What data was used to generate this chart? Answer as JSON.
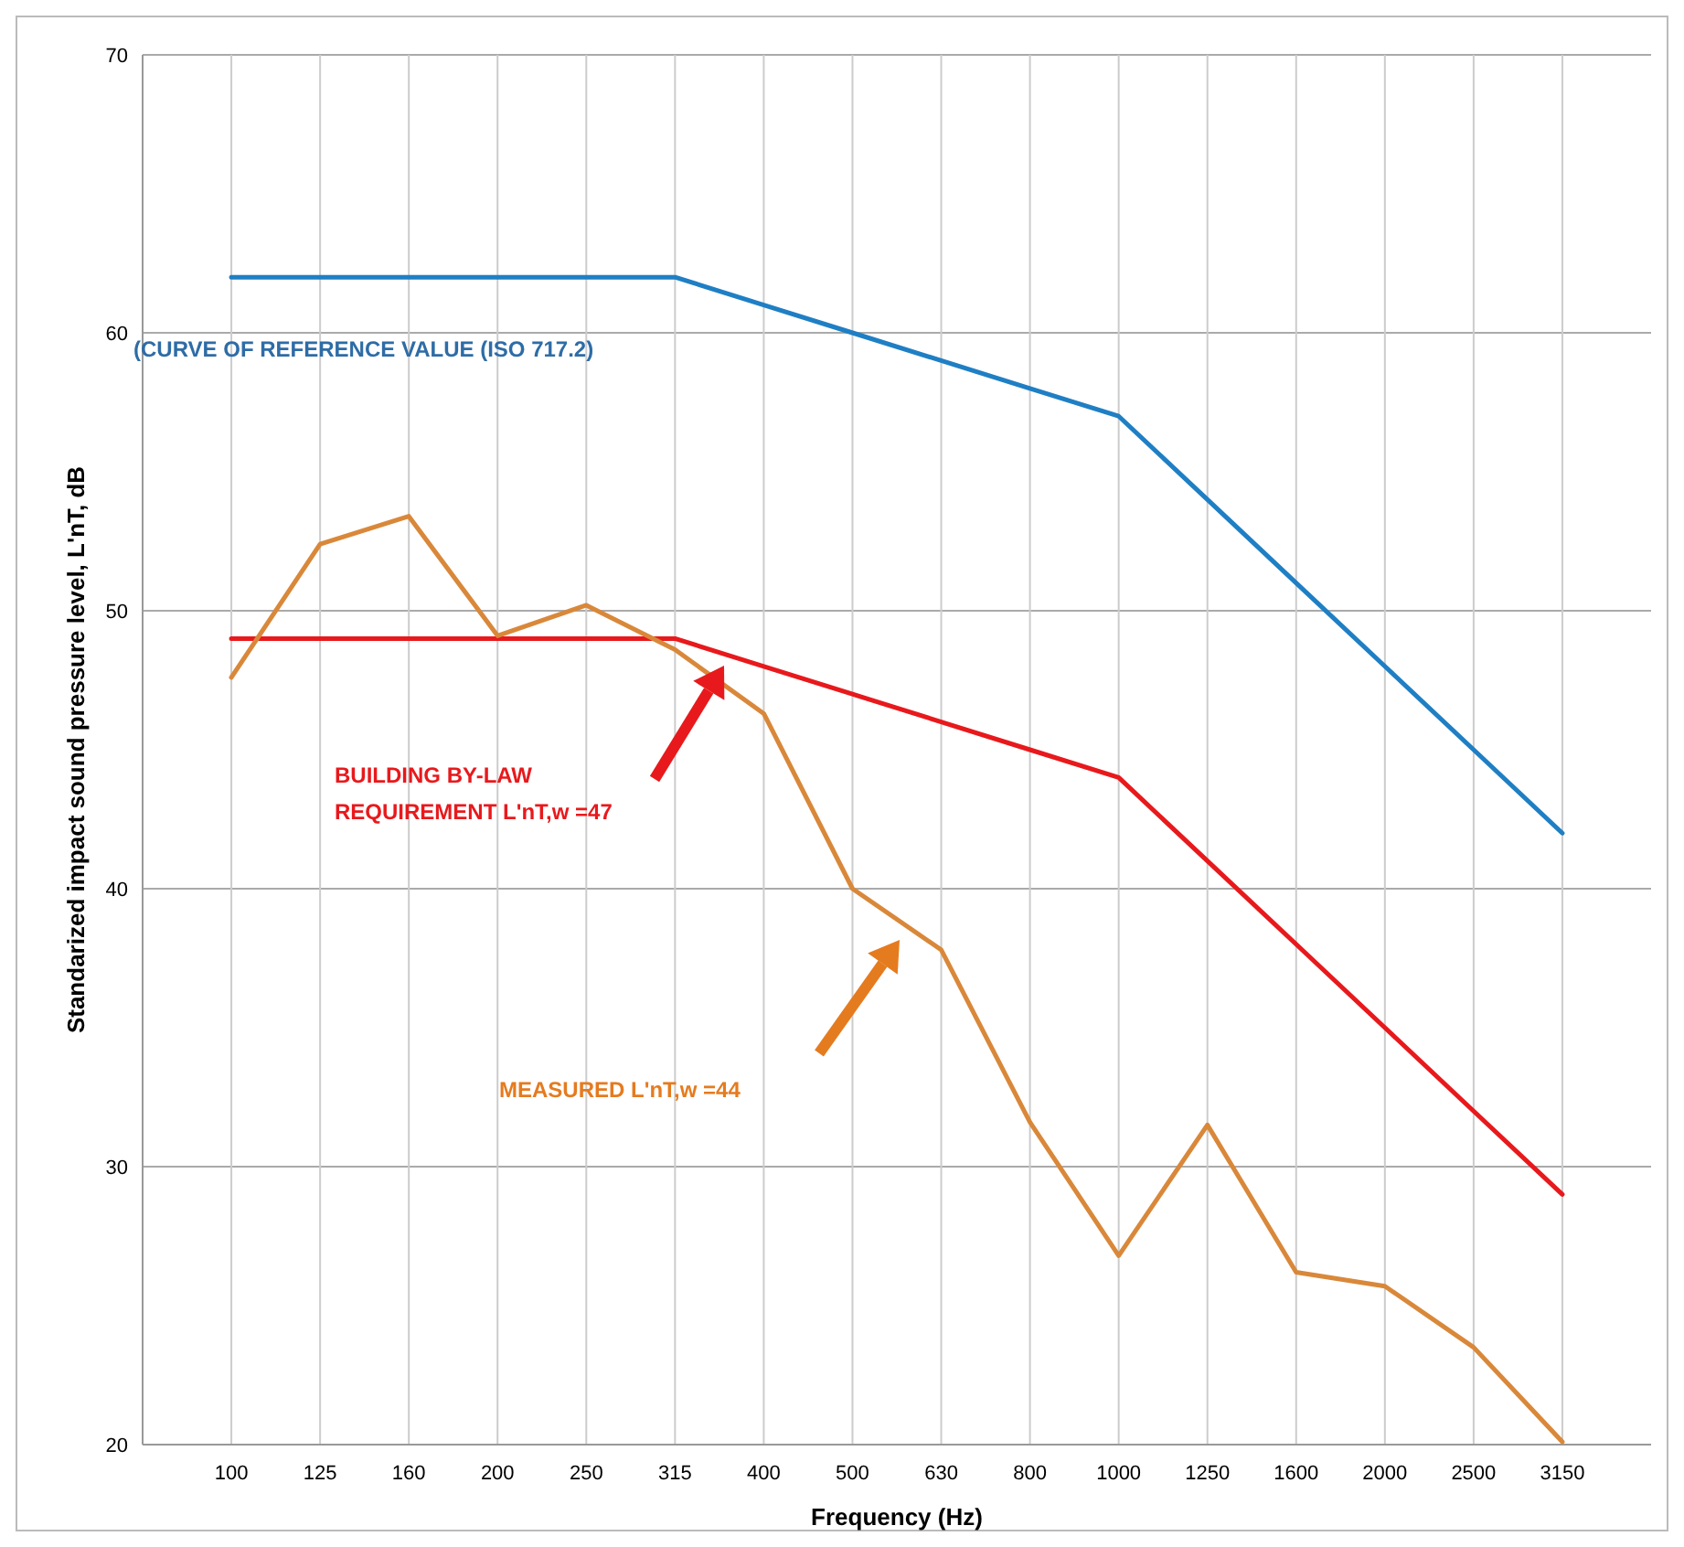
{
  "chart_data": {
    "type": "line",
    "xlabel": "Frequency (Hz)",
    "ylabel": "Standarized impact sound pressure level, L'nT, dB",
    "categories": [
      "100",
      "125",
      "160",
      "200",
      "250",
      "315",
      "400",
      "500",
      "630",
      "800",
      "1000",
      "1250",
      "1600",
      "2000",
      "2500",
      "3150"
    ],
    "series": [
      {
        "color": "#1f7fc4",
        "values": [
          62,
          62,
          62,
          62,
          62,
          62,
          61,
          60,
          59,
          58,
          57,
          54,
          51,
          48,
          45,
          42
        ]
      },
      {
        "color": "#e8191c",
        "values": [
          49,
          49,
          49,
          49,
          49,
          49,
          48,
          47,
          46,
          45,
          44,
          41,
          38,
          35,
          32,
          29
        ]
      },
      {
        "color": "#d9883a",
        "values": [
          47.6,
          52.4,
          53.4,
          49.1,
          50.2,
          48.6,
          46.3,
          40.0,
          37.8,
          31.6,
          26.8,
          31.5,
          26.2,
          25.7,
          23.5,
          20.1
        ]
      }
    ],
    "annotations": [
      "(CURVE OF REFERENCE VALUE (ISO 717.2)",
      "BUILDING BY-LAW\nREQUIREMENT  L'nT,w =47",
      "MEASURED  L'nT,w =44"
    ],
    "ylim": [
      20,
      70
    ],
    "yticks": [
      20,
      30,
      40,
      50,
      60,
      70
    ],
    "grid": true,
    "marker": "none",
    "line_style": "solid"
  }
}
